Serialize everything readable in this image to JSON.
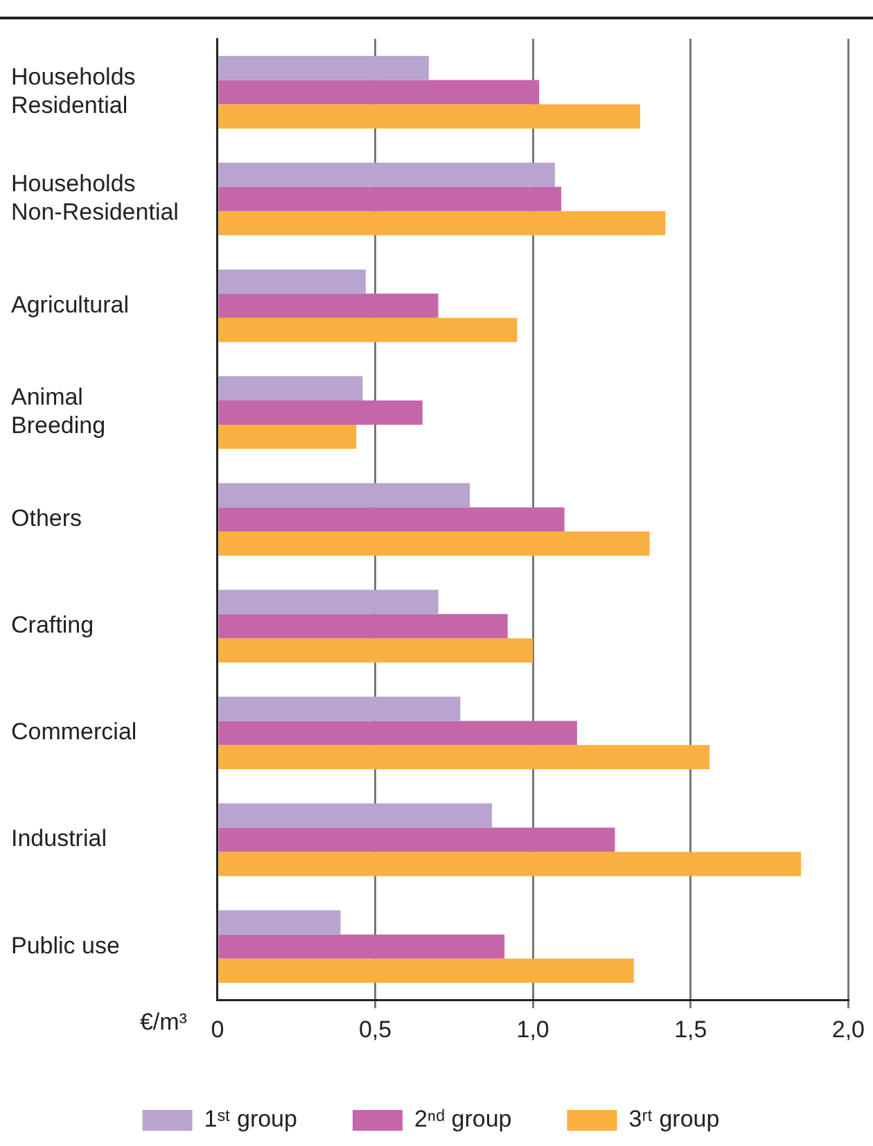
{
  "chart_data": {
    "type": "bar",
    "orientation": "horizontal",
    "xlabel": "€/m³",
    "categories": [
      "Households\nResidential",
      "Households\nNon-Residential",
      "Agricultural",
      "Animal\nBreeding",
      "Others",
      "Crafting",
      "Commercial",
      "Industrial",
      "Public use"
    ],
    "series": [
      {
        "name": "1ˢᵗ group",
        "color": "#b9a3cf",
        "values": [
          0.67,
          1.07,
          0.47,
          0.46,
          0.8,
          0.7,
          0.77,
          0.87,
          0.39
        ]
      },
      {
        "name": "2ⁿᵈ group",
        "color": "#c466a8",
        "values": [
          1.02,
          1.09,
          0.7,
          0.65,
          1.1,
          0.92,
          1.14,
          1.26,
          0.91
        ]
      },
      {
        "name": "3ʳᵗ group",
        "color": "#f9b040",
        "values": [
          1.34,
          1.42,
          0.95,
          0.44,
          1.37,
          1.0,
          1.56,
          1.85,
          1.32
        ]
      }
    ],
    "xlim": [
      0,
      2
    ],
    "xticks": [
      0,
      {
        "value": 0.5,
        "label": "0,5"
      },
      {
        "value": 1,
        "label": "1,0"
      },
      {
        "value": 1.5,
        "label": "1,5"
      },
      {
        "value": 2,
        "label": "2,0"
      }
    ],
    "grid": "x",
    "legend": "bottom"
  }
}
